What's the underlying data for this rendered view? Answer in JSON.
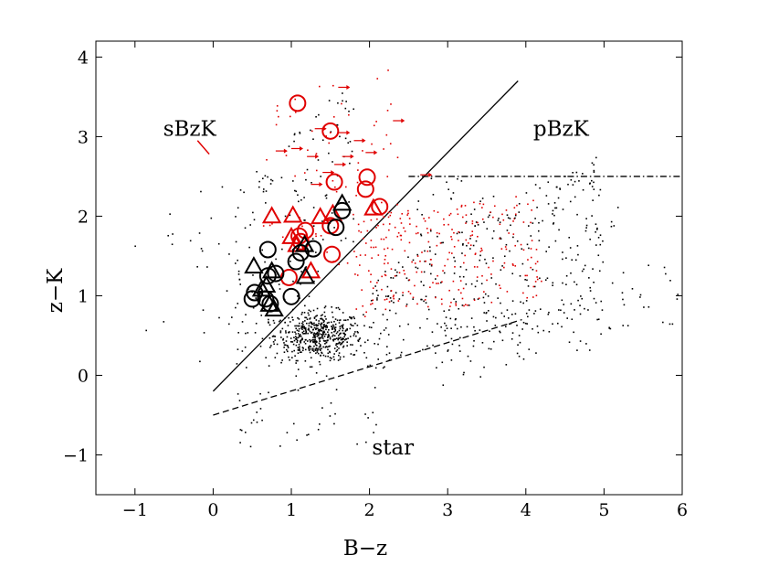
{
  "chart_data": {
    "type": "scatter",
    "title": "",
    "xlabel": "B−z",
    "ylabel": "z−K",
    "xlim": [
      -1.5,
      6
    ],
    "ylim": [
      -1.5,
      4.2
    ],
    "xticks": [
      -1,
      0,
      1,
      2,
      3,
      4,
      5,
      6
    ],
    "yticks": [
      -1,
      0,
      1,
      2,
      3,
      4
    ],
    "tick_labels_x": [
      "−1",
      "0",
      "1",
      "2",
      "3",
      "4",
      "5",
      "6"
    ],
    "tick_labels_y": [
      "−1",
      "0",
      "1",
      "2",
      "3",
      "4"
    ],
    "grid": false,
    "colors": {
      "black": "#000000",
      "red": "#e00000"
    },
    "region_labels": [
      {
        "text": "sBzK",
        "x": -0.3,
        "y": 3.1
      },
      {
        "text": "pBzK",
        "x": 4.45,
        "y": 3.1
      },
      {
        "text": "star",
        "x": 2.3,
        "y": -0.9
      }
    ],
    "lines": [
      {
        "name": "sBzK boundary",
        "style": "solid",
        "x": [
          0,
          3.9
        ],
        "y": [
          -0.2,
          3.7
        ]
      },
      {
        "name": "star boundary",
        "style": "dashed",
        "x": [
          0,
          3.95
        ],
        "y": [
          -0.5,
          0.7
        ]
      },
      {
        "name": "pBzK boundary",
        "style": "dashdot",
        "x": [
          2.5,
          6
        ],
        "y": [
          2.5,
          2.5
        ]
      }
    ],
    "series": [
      {
        "name": "red circles",
        "marker": "circle",
        "color": "red",
        "points": [
          [
            1.08,
            3.42
          ],
          [
            1.5,
            3.07
          ],
          [
            1.55,
            2.43
          ],
          [
            1.97,
            2.49
          ],
          [
            1.95,
            2.34
          ],
          [
            2.13,
            2.12
          ],
          [
            1.18,
            1.82
          ],
          [
            1.1,
            1.75
          ],
          [
            1.12,
            1.68
          ],
          [
            1.5,
            1.88
          ],
          [
            1.52,
            1.52
          ],
          [
            0.97,
            1.23
          ]
        ]
      },
      {
        "name": "red triangles",
        "marker": "triangle",
        "color": "red",
        "points": [
          [
            0.75,
            1.99
          ],
          [
            1.02,
            2.0
          ],
          [
            1.37,
            1.98
          ],
          [
            1.53,
            2.02
          ],
          [
            2.05,
            2.09
          ],
          [
            1.0,
            1.73
          ],
          [
            1.07,
            1.63
          ],
          [
            1.25,
            1.3
          ]
        ]
      },
      {
        "name": "black circles",
        "marker": "circle",
        "color": "black",
        "points": [
          [
            1.65,
            2.07
          ],
          [
            1.57,
            1.86
          ],
          [
            0.7,
            1.58
          ],
          [
            1.12,
            1.54
          ],
          [
            1.28,
            1.59
          ],
          [
            1.06,
            1.43
          ],
          [
            0.8,
            1.28
          ],
          [
            0.7,
            1.25
          ],
          [
            1.0,
            0.99
          ],
          [
            0.53,
            1.04
          ],
          [
            0.5,
            0.96
          ],
          [
            0.67,
            0.96
          ],
          [
            0.73,
            0.9
          ]
        ]
      },
      {
        "name": "black triangles",
        "marker": "triangle",
        "color": "black",
        "points": [
          [
            1.65,
            2.15
          ],
          [
            1.17,
            1.63
          ],
          [
            0.52,
            1.36
          ],
          [
            0.75,
            1.3
          ],
          [
            1.18,
            1.23
          ],
          [
            0.68,
            1.12
          ],
          [
            0.62,
            1.07
          ],
          [
            0.72,
            0.88
          ],
          [
            0.78,
            0.82
          ]
        ]
      },
      {
        "name": "red arrows",
        "marker": "arrow",
        "color": "red",
        "points": [
          [
            1.6,
            3.62
          ],
          [
            2.3,
            3.2
          ],
          [
            1.3,
            3.1
          ],
          [
            1.0,
            2.85
          ],
          [
            1.2,
            2.75
          ],
          [
            1.65,
            2.75
          ],
          [
            1.8,
            2.95
          ],
          [
            1.6,
            3.05
          ],
          [
            1.95,
            2.8
          ],
          [
            1.55,
            2.65
          ],
          [
            0.8,
            2.82
          ],
          [
            1.4,
            2.55
          ],
          [
            1.25,
            2.4
          ],
          [
            2.65,
            2.52
          ]
        ]
      }
    ]
  }
}
